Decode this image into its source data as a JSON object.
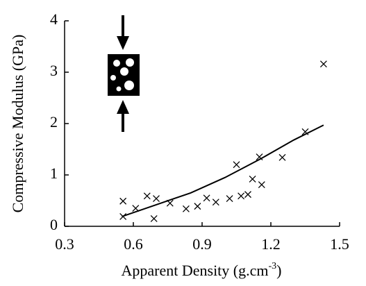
{
  "chart_data": {
    "type": "scatter",
    "y_label": "Compressive Modulus (GPa)",
    "x_label": "Apparent Density  (g.cm",
    "x_label_superscript": "-3",
    "x_label_end": ")",
    "xlim": [
      0.3,
      1.5
    ],
    "xticks": [
      0.3,
      0.6,
      0.9,
      1.2,
      1.5
    ],
    "ylim": [
      0,
      4
    ],
    "yticks": [
      0,
      1,
      2,
      3,
      4
    ],
    "series": [
      {
        "type": "scatter",
        "marker": "x",
        "color": "#000000",
        "x": [
          0.555,
          0.555,
          0.61,
          0.66,
          0.7,
          0.69,
          0.76,
          0.83,
          0.88,
          0.92,
          0.96,
          1.02,
          1.05,
          1.07,
          1.1,
          1.12,
          1.15,
          1.16,
          1.25,
          1.35,
          1.43
        ],
        "values": [
          0.49,
          0.19,
          0.35,
          0.59,
          0.54,
          0.15,
          0.45,
          0.34,
          0.39,
          0.55,
          0.47,
          0.54,
          1.2,
          0.59,
          0.62,
          0.92,
          1.35,
          0.81,
          1.34,
          1.84,
          3.16
        ]
      },
      {
        "type": "line",
        "color": "#000000",
        "x": [
          0.55,
          0.7,
          0.85,
          1.0,
          1.15,
          1.3,
          1.43
        ],
        "values": [
          0.19,
          0.42,
          0.65,
          0.95,
          1.3,
          1.68,
          1.97
        ]
      }
    ]
  }
}
